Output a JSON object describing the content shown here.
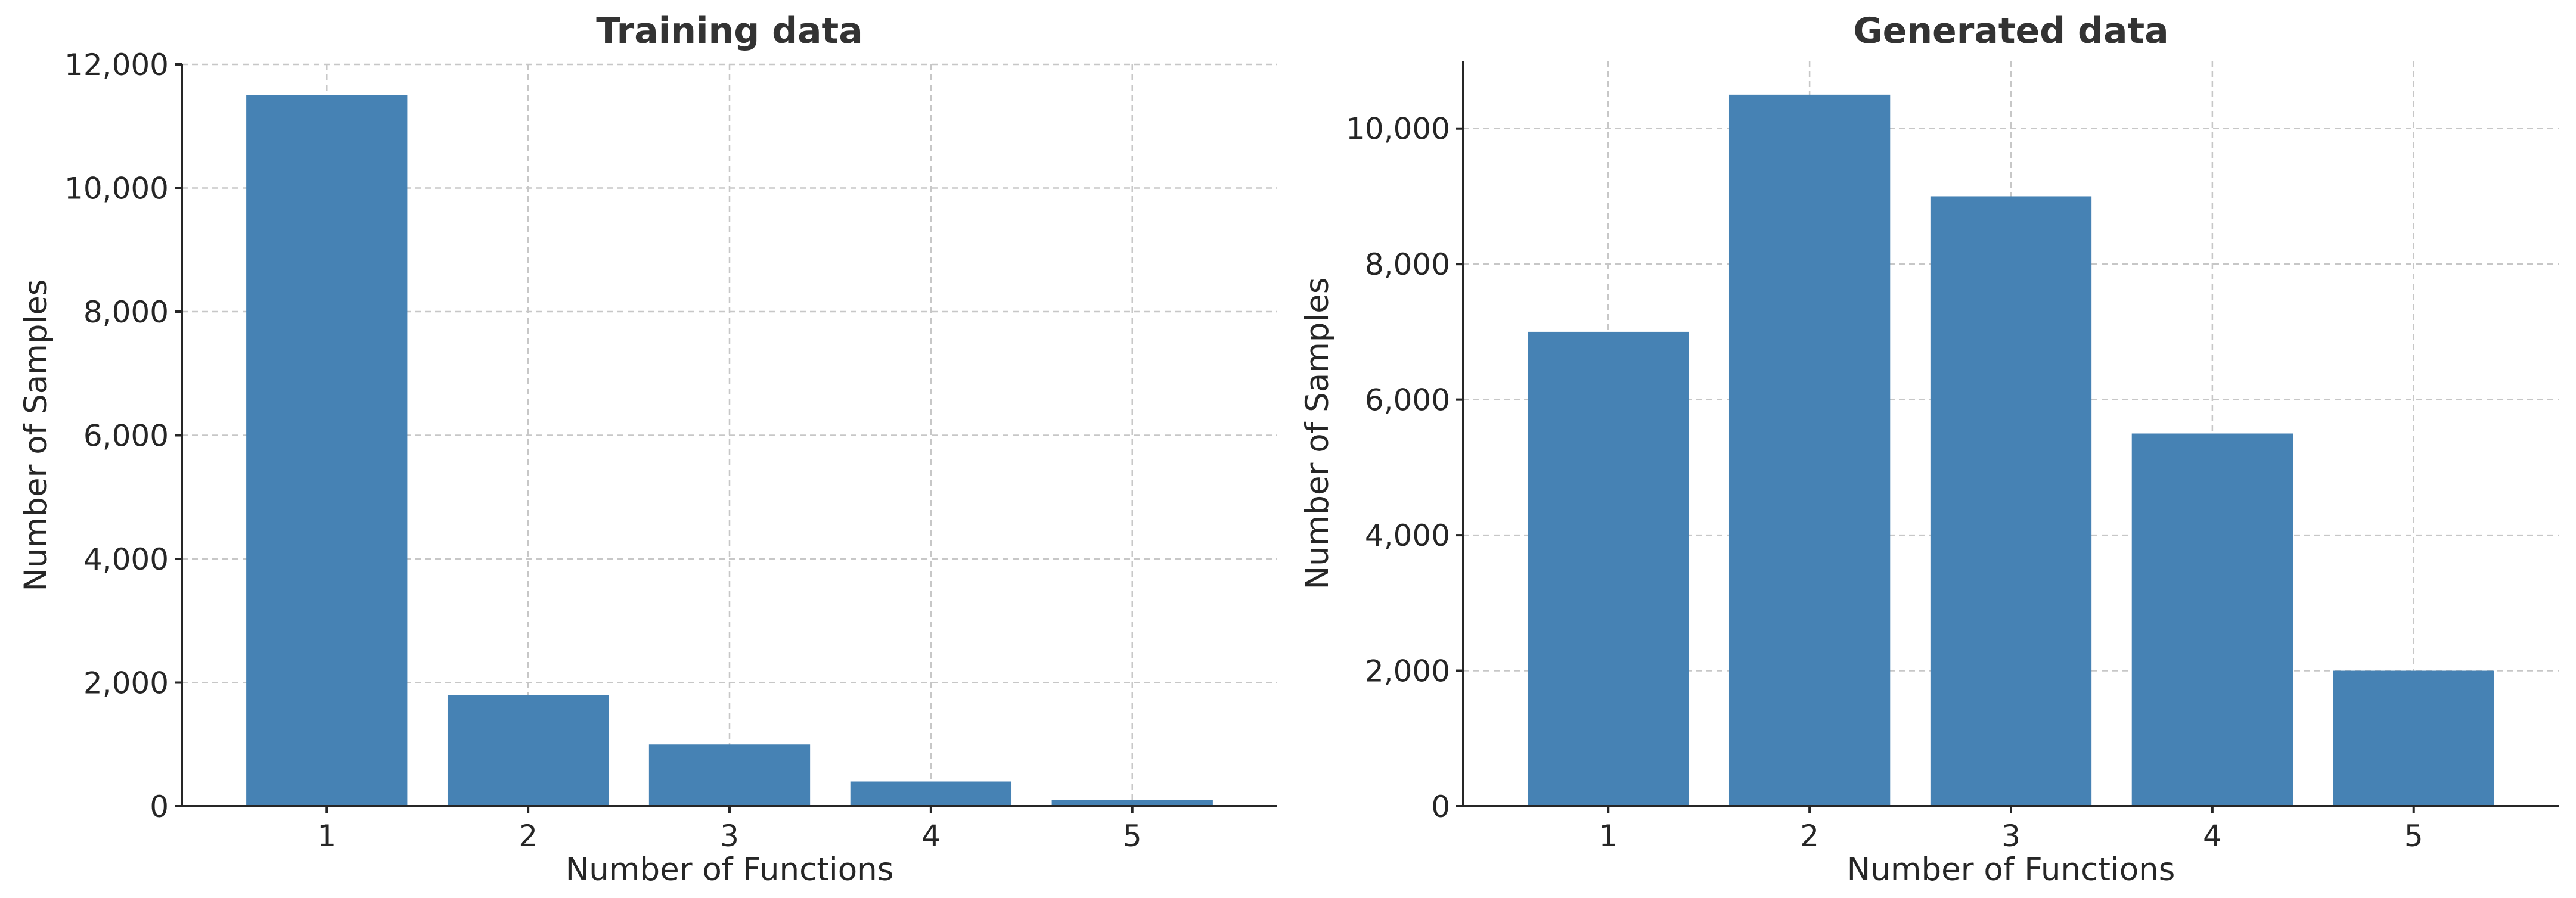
{
  "chart_data": [
    {
      "type": "bar",
      "title": "Training data",
      "xlabel": "Number of Functions",
      "ylabel": "Number of Samples",
      "categories": [
        "1",
        "2",
        "3",
        "4",
        "5"
      ],
      "values": [
        11500,
        1800,
        1000,
        400,
        100
      ],
      "ylim": [
        0,
        12000
      ],
      "yticks": [
        0,
        2000,
        4000,
        6000,
        8000,
        10000,
        12000
      ],
      "ytick_labels": [
        "0",
        "2,000",
        "4,000",
        "6,000",
        "8,000",
        "10,000",
        "12,000"
      ],
      "grid": true,
      "bar_color": "#4682b4"
    },
    {
      "type": "bar",
      "title": "Generated data",
      "xlabel": "Number of Functions",
      "ylabel": "Number of Samples",
      "categories": [
        "1",
        "2",
        "3",
        "4",
        "5"
      ],
      "values": [
        7000,
        10500,
        9000,
        5500,
        2000
      ],
      "ylim": [
        0,
        11000
      ],
      "yticks": [
        0,
        2000,
        4000,
        6000,
        8000,
        10000
      ],
      "ytick_labels": [
        "0",
        "2,000",
        "4,000",
        "6,000",
        "8,000",
        "10,000"
      ],
      "grid": true,
      "bar_color": "#4682b4"
    }
  ]
}
